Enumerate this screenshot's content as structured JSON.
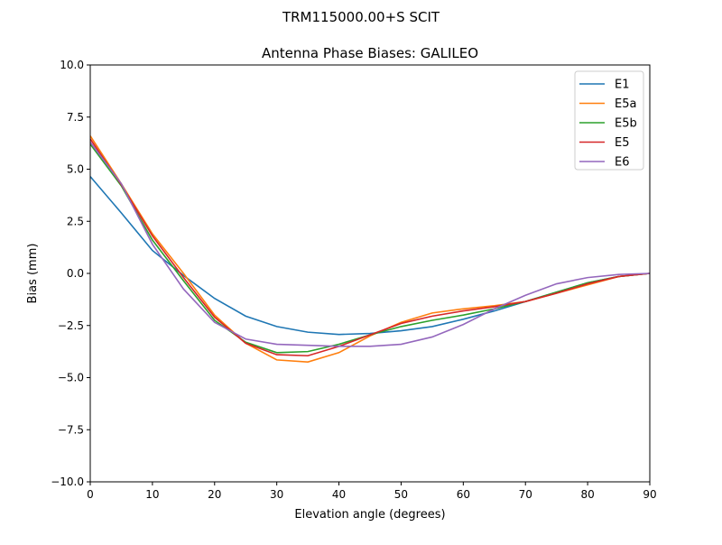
{
  "chart_data": {
    "type": "line",
    "suptitle": "TRM115000.00+S  SCIT",
    "title": "Antenna Phase Biases: GALILEO",
    "xlabel": "Elevation angle (degrees)",
    "ylabel": "Bias (mm)",
    "xlim": [
      0,
      90
    ],
    "ylim": [
      -10,
      10
    ],
    "xticks": [
      0,
      10,
      20,
      30,
      40,
      50,
      60,
      70,
      80,
      90
    ],
    "xtick_labels": [
      "0",
      "10",
      "20",
      "30",
      "40",
      "50",
      "60",
      "70",
      "80",
      "90"
    ],
    "yticks": [
      -10,
      -7.5,
      -5,
      -2.5,
      0,
      2.5,
      5,
      7.5,
      10
    ],
    "ytick_labels": [
      "−10.0",
      "−7.5",
      "−5.0",
      "−2.5",
      "0.0",
      "2.5",
      "5.0",
      "7.5",
      "10.0"
    ],
    "grid": false,
    "legend_position": "top-right",
    "x": [
      0,
      5,
      10,
      15,
      20,
      25,
      30,
      35,
      40,
      45,
      50,
      55,
      60,
      65,
      70,
      75,
      80,
      85,
      90
    ],
    "series": [
      {
        "name": "E1",
        "color": "#1f77b4",
        "values": [
          4.65,
          2.9,
          1.1,
          -0.1,
          -1.2,
          -2.05,
          -2.55,
          -2.82,
          -2.93,
          -2.88,
          -2.75,
          -2.55,
          -2.2,
          -1.8,
          -1.35,
          -0.9,
          -0.45,
          -0.15,
          0
        ]
      },
      {
        "name": "E5a",
        "color": "#ff7f0e",
        "values": [
          6.6,
          4.3,
          1.9,
          0.0,
          -2.0,
          -3.35,
          -4.15,
          -4.25,
          -3.8,
          -3.0,
          -2.35,
          -1.9,
          -1.7,
          -1.55,
          -1.35,
          -0.95,
          -0.55,
          -0.15,
          0
        ]
      },
      {
        "name": "E5b",
        "color": "#2ca02c",
        "values": [
          6.2,
          4.2,
          1.6,
          -0.35,
          -2.25,
          -3.3,
          -3.8,
          -3.75,
          -3.4,
          -2.95,
          -2.55,
          -2.25,
          -2.0,
          -1.7,
          -1.35,
          -0.9,
          -0.45,
          -0.15,
          0
        ]
      },
      {
        "name": "E5",
        "color": "#d62728",
        "values": [
          6.45,
          4.25,
          1.8,
          -0.2,
          -2.1,
          -3.35,
          -3.9,
          -3.95,
          -3.5,
          -2.95,
          -2.4,
          -2.05,
          -1.8,
          -1.6,
          -1.35,
          -0.95,
          -0.5,
          -0.15,
          0
        ]
      },
      {
        "name": "E6",
        "color": "#9467bd",
        "values": [
          6.3,
          4.3,
          1.4,
          -0.75,
          -2.35,
          -3.15,
          -3.4,
          -3.45,
          -3.5,
          -3.5,
          -3.4,
          -3.05,
          -2.45,
          -1.7,
          -1.05,
          -0.5,
          -0.2,
          -0.05,
          0
        ]
      }
    ]
  }
}
